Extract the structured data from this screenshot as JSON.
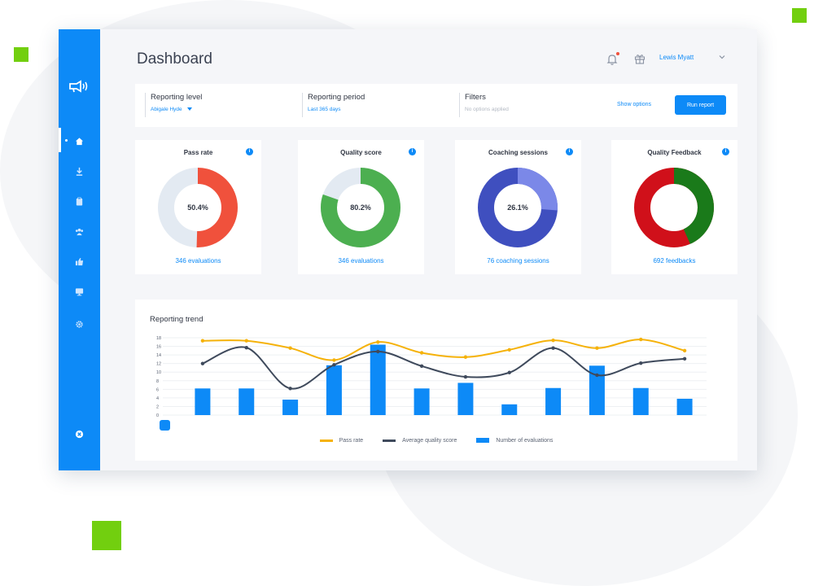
{
  "colors": {
    "brand_blue": "#0d8af7",
    "accent_green": "#72cf0f",
    "pass_red": "#f0513c",
    "quality_green": "#4caf50",
    "coaching_indigo": "#3f4fbf",
    "coaching_light": "#7b88e8",
    "feedback_red": "#d0101a",
    "feedback_green": "#1a7a1a",
    "donut_track": "#e3eaf2",
    "line_yellow": "#f5b20a",
    "line_dark": "#3f4a5c"
  },
  "sidebar": {
    "items": [
      {
        "icon": "home-icon",
        "active": true
      },
      {
        "icon": "download-icon"
      },
      {
        "icon": "clipboard-icon"
      },
      {
        "icon": "team-icon"
      },
      {
        "icon": "thumbs-up-icon"
      },
      {
        "icon": "monitor-icon"
      },
      {
        "icon": "gear-icon"
      }
    ],
    "bottom_icon": "close-circle-icon"
  },
  "header": {
    "title": "Dashboard",
    "user_name": "Lewis Myatt"
  },
  "filters": {
    "reporting_level": {
      "label": "Reporting level",
      "value": "Abigale Hyde"
    },
    "reporting_period": {
      "label": "Reporting period",
      "value": "Last 365 days"
    },
    "filters": {
      "label": "Filters",
      "value": "No options applied"
    },
    "show_options": "Show options",
    "run_report": "Run report"
  },
  "cards": [
    {
      "title": "Pass rate",
      "value": "50.4%",
      "percent": 50.4,
      "footer": "346 evaluations"
    },
    {
      "title": "Quality score",
      "value": "80.2%",
      "percent": 80.2,
      "footer": "346 evaluations"
    },
    {
      "title": "Coaching sessions",
      "value": "26.1%",
      "percent": 26.1,
      "footer": "76 coaching sessions"
    },
    {
      "title": "Quality Feedback",
      "footer": "692 feedbacks"
    }
  ],
  "trend": {
    "title": "Reporting trend",
    "legend": [
      "Pass rate",
      "Average quality score",
      "Number of evaluations"
    ]
  },
  "chart_data": {
    "type": "bar",
    "y_ticks": [
      "0",
      "2",
      "4",
      "6",
      "8",
      "10",
      "12",
      "14",
      "16",
      "18"
    ],
    "ylim": [
      0,
      18
    ],
    "series": [
      {
        "name": "Pass rate",
        "type": "line",
        "values": [
          17.3,
          17.3,
          15.6,
          12.8,
          17.0,
          14.5,
          13.5,
          15.2,
          17.4,
          15.6,
          17.6,
          15.0
        ]
      },
      {
        "name": "Average quality score",
        "type": "line",
        "values": [
          12.0,
          15.7,
          6.2,
          11.7,
          14.8,
          11.4,
          8.9,
          9.9,
          15.6,
          9.3,
          12.1,
          13.1
        ]
      },
      {
        "name": "Number of evaluations",
        "type": "bar",
        "values": [
          6.2,
          6.2,
          3.6,
          11.6,
          16.4,
          6.2,
          7.5,
          2.5,
          6.3,
          11.5,
          6.3,
          3.8
        ]
      }
    ]
  }
}
